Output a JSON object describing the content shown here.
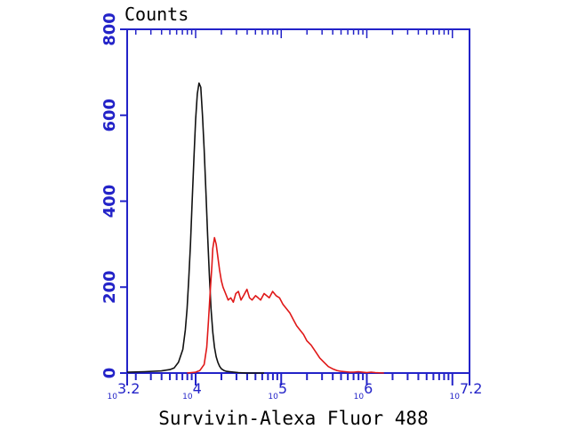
{
  "chart_data": {
    "type": "line",
    "ylabel": "Counts",
    "xlabel": "Survivin-Alexa Fluor 488",
    "x_scale": "log10",
    "xlim": [
      3.2,
      7.2
    ],
    "ylim": [
      0,
      800
    ],
    "y_ticks": [
      0,
      200,
      400,
      600,
      800
    ],
    "x_tick_labels": [
      {
        "base": "10",
        "exp": "3.2",
        "log": 3.2
      },
      {
        "base": "10",
        "exp": "4",
        "log": 4
      },
      {
        "base": "10",
        "exp": "5",
        "log": 5
      },
      {
        "base": "10",
        "exp": "6",
        "log": 6
      },
      {
        "base": "10",
        "exp": "7.2",
        "log": 7.2
      }
    ],
    "grid": false,
    "colors": {
      "axis": "#2323c8",
      "series_black": "#111111",
      "series_red": "#e01818"
    },
    "series": [
      {
        "color": "#111111",
        "x": [
          3.2,
          3.4,
          3.6,
          3.7,
          3.75,
          3.8,
          3.85,
          3.88,
          3.9,
          3.92,
          3.94,
          3.96,
          3.98,
          4.0,
          4.02,
          4.04,
          4.06,
          4.08,
          4.1,
          4.12,
          4.14,
          4.16,
          4.18,
          4.2,
          4.22,
          4.24,
          4.26,
          4.28,
          4.3,
          4.33,
          4.36,
          4.4,
          4.45,
          4.5,
          4.6,
          4.8
        ],
        "y": [
          2,
          3,
          5,
          8,
          12,
          25,
          55,
          100,
          150,
          220,
          300,
          400,
          500,
          590,
          650,
          675,
          665,
          600,
          520,
          420,
          320,
          230,
          150,
          95,
          60,
          38,
          25,
          16,
          10,
          6,
          4,
          3,
          2,
          1,
          0,
          0
        ]
      },
      {
        "color": "#e01818",
        "x": [
          3.9,
          4.0,
          4.05,
          4.1,
          4.13,
          4.15,
          4.17,
          4.19,
          4.2,
          4.22,
          4.24,
          4.26,
          4.28,
          4.3,
          4.32,
          4.35,
          4.38,
          4.41,
          4.44,
          4.47,
          4.5,
          4.53,
          4.56,
          4.6,
          4.63,
          4.66,
          4.7,
          4.73,
          4.76,
          4.8,
          4.83,
          4.86,
          4.9,
          4.94,
          4.98,
          5.02,
          5.06,
          5.1,
          5.14,
          5.18,
          5.22,
          5.26,
          5.3,
          5.35,
          5.4,
          5.45,
          5.5,
          5.55,
          5.6,
          5.65,
          5.7,
          5.75,
          5.8,
          5.85,
          5.9,
          5.95,
          6.0,
          6.05,
          6.1,
          6.2
        ],
        "y": [
          0,
          2,
          6,
          20,
          60,
          120,
          190,
          250,
          290,
          315,
          300,
          270,
          240,
          215,
          200,
          185,
          170,
          175,
          165,
          185,
          190,
          170,
          180,
          195,
          175,
          170,
          180,
          175,
          170,
          185,
          180,
          175,
          190,
          180,
          175,
          160,
          150,
          140,
          125,
          110,
          100,
          90,
          75,
          65,
          50,
          35,
          25,
          15,
          10,
          6,
          4,
          3,
          2,
          2,
          3,
          2,
          1,
          2,
          1,
          0
        ]
      }
    ]
  }
}
